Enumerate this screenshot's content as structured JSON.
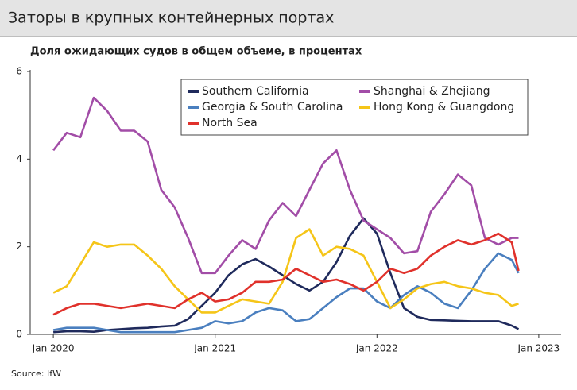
{
  "chart_data": {
    "type": "line",
    "title": "Заторы в крупных контейнерных портах",
    "subtitle": "Доля ожидающих судов в общем объеме, в процентах",
    "source": "Source: IfW",
    "x": [
      2020,
      2020.083,
      2020.167,
      2020.25,
      2020.333,
      2020.417,
      2020.5,
      2020.583,
      2020.667,
      2020.75,
      2020.833,
      2020.917,
      2021,
      2021.083,
      2021.167,
      2021.25,
      2021.333,
      2021.417,
      2021.5,
      2021.583,
      2021.667,
      2021.75,
      2021.833,
      2021.917,
      2022,
      2022.083,
      2022.167,
      2022.25,
      2022.333,
      2022.417,
      2022.5,
      2022.583,
      2022.667,
      2022.75,
      2022.833,
      2022.875
    ],
    "xlim": [
      2019.857,
      2023.138
    ],
    "xticks": [
      {
        "value": 2020,
        "label": "Jan 2020"
      },
      {
        "value": 2021,
        "label": "Jan 2021"
      },
      {
        "value": 2022,
        "label": "Jan 2022"
      },
      {
        "value": 2023,
        "label": "Jan 2023"
      }
    ],
    "ylim": [
      0,
      6
    ],
    "yticks": [
      0,
      2,
      4,
      6
    ],
    "grid": false,
    "legend": "top",
    "series": [
      {
        "name": "Southern California",
        "color": "#1f2a5c",
        "values": [
          0.05,
          0.07,
          0.07,
          0.06,
          0.1,
          0.12,
          0.14,
          0.15,
          0.18,
          0.2,
          0.35,
          0.65,
          0.95,
          1.35,
          1.6,
          1.72,
          1.55,
          1.35,
          1.15,
          1.0,
          1.2,
          1.65,
          2.25,
          2.65,
          2.3,
          1.4,
          0.6,
          0.4,
          0.33,
          0.32,
          0.31,
          0.3,
          0.3,
          0.3,
          0.2,
          0.12
        ]
      },
      {
        "name": "Shanghai & Zhejiang",
        "color": "#a24da7",
        "values": [
          4.2,
          4.6,
          4.5,
          5.4,
          5.1,
          4.65,
          4.65,
          4.4,
          3.3,
          2.9,
          2.2,
          1.4,
          1.4,
          1.8,
          2.15,
          1.95,
          2.6,
          3.0,
          2.7,
          3.3,
          3.9,
          4.2,
          3.3,
          2.6,
          2.4,
          2.2,
          1.85,
          1.9,
          2.8,
          3.2,
          3.65,
          3.4,
          2.2,
          2.05,
          2.2,
          2.2
        ]
      },
      {
        "name": "Georgia & South Carolina",
        "color": "#4a7fbf",
        "values": [
          0.1,
          0.15,
          0.15,
          0.15,
          0.1,
          0.05,
          0.05,
          0.05,
          0.05,
          0.05,
          0.1,
          0.15,
          0.3,
          0.25,
          0.3,
          0.5,
          0.6,
          0.55,
          0.3,
          0.35,
          0.6,
          0.85,
          1.05,
          1.05,
          0.75,
          0.6,
          0.9,
          1.1,
          0.95,
          0.7,
          0.6,
          1.0,
          1.5,
          1.85,
          1.7,
          1.4
        ]
      },
      {
        "name": "Hong Kong & Guangdong",
        "color": "#f5c518",
        "values": [
          0.95,
          1.1,
          1.6,
          2.1,
          2.0,
          2.05,
          2.05,
          1.8,
          1.5,
          1.1,
          0.8,
          0.5,
          0.5,
          0.65,
          0.8,
          0.75,
          0.7,
          1.2,
          2.2,
          2.4,
          1.8,
          2.0,
          1.95,
          1.8,
          1.2,
          0.6,
          0.8,
          1.05,
          1.15,
          1.2,
          1.1,
          1.05,
          0.95,
          0.9,
          0.65,
          0.7
        ]
      },
      {
        "name": "North Sea",
        "color": "#e0312b",
        "values": [
          0.45,
          0.6,
          0.7,
          0.7,
          0.65,
          0.6,
          0.65,
          0.7,
          0.65,
          0.6,
          0.8,
          0.95,
          0.75,
          0.8,
          0.95,
          1.2,
          1.2,
          1.25,
          1.5,
          1.35,
          1.2,
          1.25,
          1.15,
          1.0,
          1.2,
          1.5,
          1.4,
          1.5,
          1.8,
          2.0,
          2.15,
          2.05,
          2.15,
          2.3,
          2.1,
          1.45
        ]
      }
    ]
  }
}
